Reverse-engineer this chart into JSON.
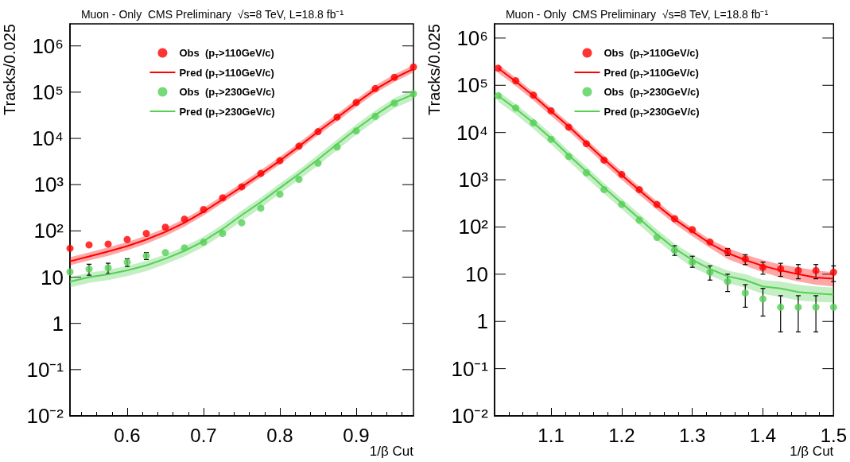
{
  "chart_data": [
    {
      "type": "scatter",
      "title": "Muon - Only  CMS Preliminary  √s=8 TeV, L=18.8 fb⁻¹",
      "xlabel": "1/β Cut",
      "ylabel": "Tracks/0.025",
      "log": "y",
      "grid": false,
      "legend": "top",
      "x": [
        0.525,
        0.55,
        0.575,
        0.6,
        0.625,
        0.65,
        0.675,
        0.7,
        0.725,
        0.75,
        0.775,
        0.8,
        0.825,
        0.85,
        0.875,
        0.9,
        0.925,
        0.95,
        0.975
      ],
      "xlim": [
        0.525,
        0.975
      ],
      "xticks": [
        0.6,
        0.7,
        0.8,
        0.9
      ],
      "ylim": [
        0.01,
        3000000
      ],
      "yticks": [
        {
          "value": 0.01,
          "label": "10⁻²"
        },
        {
          "value": 0.1,
          "label": "10⁻¹"
        },
        {
          "value": 1,
          "label": "1"
        },
        {
          "value": 10,
          "label": "10"
        },
        {
          "value": 100,
          "label": "10²"
        },
        {
          "value": 1000,
          "label": "10³"
        },
        {
          "value": 10000,
          "label": "10⁴"
        },
        {
          "value": 100000,
          "label": "10⁵"
        },
        {
          "value": 1000000,
          "label": "10⁶"
        }
      ],
      "series": [
        {
          "name": "Obs  (p$_{T}$>110GeV/c)",
          "marker": "circle",
          "color": "#ff0000",
          "values": [
            42,
            50,
            52,
            65,
            88,
            120,
            180,
            290,
            520,
            900,
            1750,
            3300,
            6800,
            14000,
            29000,
            60000,
            120000,
            210000,
            350000
          ]
        },
        {
          "name": "Pred (p$_{T}$>110GeV/c)",
          "type": "line",
          "marker": "none",
          "color": "#ff0000",
          "values": [
            22,
            28,
            36,
            47,
            65,
            95,
            150,
            260,
            480,
            900,
            1700,
            3300,
            6700,
            14000,
            28000,
            58000,
            115000,
            200000,
            320000
          ],
          "lower": [
            18,
            23,
            29,
            38,
            53,
            78,
            124,
            215,
            400,
            750,
            1420,
            2750,
            5600,
            11700,
            23300,
            48000,
            96000,
            167000,
            267000
          ],
          "upper": [
            27,
            34,
            44,
            57,
            79,
            115,
            182,
            315,
            580,
            1090,
            2050,
            4000,
            8100,
            16900,
            33800,
            70000,
            139000,
            242000,
            387000
          ]
        },
        {
          "name": "Obs  (p$_{T}$>230GeV/c)",
          "marker": "circle",
          "color": "#55d055",
          "values": [
            13,
            15,
            16,
            21,
            29,
            34,
            43,
            57,
            88,
            150,
            310,
            620,
            1300,
            2900,
            6500,
            14500,
            30000,
            58000,
            92000
          ],
          "errors": [
            null,
            [
              11,
              19
            ],
            [
              12,
              20
            ],
            [
              17,
              25
            ],
            [
              24,
              34
            ],
            null,
            null,
            null,
            null,
            null,
            null,
            null,
            null,
            null,
            null,
            null,
            null,
            null,
            null
          ]
        },
        {
          "name": "Pred (p$_{T}$>230GeV/c)",
          "type": "line",
          "marker": "none",
          "color": "#55d055",
          "values": [
            8,
            10,
            11.5,
            14,
            18,
            25,
            37,
            60,
            110,
            220,
            420,
            850,
            1700,
            3500,
            7500,
            16000,
            32000,
            60000,
            90000
          ],
          "lower": [
            6,
            7.5,
            8.6,
            10.5,
            13.5,
            19,
            28,
            45,
            83,
            165,
            315,
            640,
            1280,
            2600,
            5600,
            12000,
            24000,
            45000,
            68000
          ],
          "upper": [
            10,
            12.5,
            14.4,
            17.5,
            22.5,
            31,
            46,
            75,
            138,
            275,
            525,
            1060,
            2100,
            4400,
            9400,
            20000,
            40000,
            75000,
            112000
          ]
        }
      ]
    },
    {
      "type": "scatter",
      "title": "Muon - Only  CMS Preliminary  √s=8 TeV, L=18.8 fb⁻¹",
      "xlabel": "1/β Cut",
      "ylabel": "Tracks/0.025",
      "log": "y",
      "grid": false,
      "legend": "top",
      "x": [
        1.025,
        1.05,
        1.075,
        1.1,
        1.125,
        1.15,
        1.175,
        1.2,
        1.225,
        1.25,
        1.275,
        1.3,
        1.325,
        1.35,
        1.375,
        1.4,
        1.425,
        1.45,
        1.475,
        1.5
      ],
      "xlim": [
        1.02,
        1.5
      ],
      "xticks": [
        1.1,
        1.2,
        1.3,
        1.4,
        1.5
      ],
      "ylim": [
        0.01,
        2000000
      ],
      "yticks": [
        {
          "value": 0.01,
          "label": "10⁻²"
        },
        {
          "value": 0.1,
          "label": "10⁻¹"
        },
        {
          "value": 1,
          "label": "1"
        },
        {
          "value": 10,
          "label": "10"
        },
        {
          "value": 100,
          "label": "10²"
        },
        {
          "value": 1000,
          "label": "10³"
        },
        {
          "value": 10000,
          "label": "10⁴"
        },
        {
          "value": 100000,
          "label": "10⁵"
        },
        {
          "value": 1000000,
          "label": "10⁶"
        }
      ],
      "series": [
        {
          "name": "Obs  (p$_{T}$>110GeV/c)",
          "marker": "circle",
          "color": "#ff0000",
          "values": [
            230000,
            125000,
            62000,
            29000,
            13000,
            5800,
            2600,
            1300,
            620,
            300,
            150,
            88,
            48,
            30,
            21,
            14,
            13,
            12,
            12,
            11
          ],
          "errors": [
            null,
            null,
            null,
            null,
            null,
            null,
            null,
            null,
            null,
            null,
            null,
            null,
            null,
            [
              25,
              35
            ],
            [
              16,
              26
            ],
            [
              10,
              18
            ],
            [
              9,
              17
            ],
            [
              8,
              16
            ],
            [
              8,
              16
            ],
            [
              7,
              15
            ]
          ]
        },
        {
          "name": "Pred (p$_{T}$>110GeV/c)",
          "type": "line",
          "marker": "none",
          "color": "#ff0000",
          "values": [
            230000,
            120000,
            60000,
            28000,
            13500,
            6000,
            2700,
            1250,
            600,
            290,
            145,
            80,
            45,
            28,
            20,
            15,
            12,
            10,
            8.5,
            8
          ],
          "lower": [
            185000,
            96000,
            48000,
            22400,
            10800,
            4800,
            2160,
            1000,
            480,
            232,
            116,
            64,
            36,
            21,
            15,
            11,
            8.5,
            7,
            6,
            5.5
          ],
          "upper": [
            280000,
            145000,
            72000,
            33600,
            16200,
            7200,
            3240,
            1500,
            720,
            348,
            174,
            96,
            54,
            36,
            26,
            20,
            16,
            14,
            12,
            11
          ]
        },
        {
          "name": "Obs  (p$_{T}$>230GeV/c)",
          "marker": "circle",
          "color": "#55d055",
          "values": [
            60000,
            33000,
            16000,
            7200,
            3100,
            1400,
            620,
            300,
            140,
            60,
            32,
            18,
            11,
            7,
            4,
            3,
            2,
            2,
            2,
            2
          ],
          "errors": [
            null,
            null,
            null,
            null,
            null,
            null,
            null,
            null,
            null,
            null,
            [
              25,
              40
            ],
            [
              14,
              24
            ],
            [
              7.5,
              15
            ],
            [
              4.3,
              10
            ],
            [
              2,
              6
            ],
            [
              1.3,
              5
            ],
            [
              0.6,
              3.5
            ],
            [
              0.6,
              3.5
            ],
            [
              0.6,
              3.5
            ],
            null
          ]
        },
        {
          "name": "Pred (p$_{T}$>230GeV/c)",
          "type": "line",
          "marker": "none",
          "color": "#55d055",
          "values": [
            60000,
            32000,
            16000,
            7500,
            3300,
            1500,
            680,
            320,
            150,
            70,
            35,
            20,
            13,
            9,
            7.5,
            5.5,
            5,
            4.2,
            3.9,
            3.7
          ],
          "lower": [
            45000,
            24000,
            12000,
            5600,
            2500,
            1100,
            510,
            240,
            110,
            52,
            26,
            14,
            9.5,
            6.5,
            5.2,
            3.8,
            3.3,
            2.8,
            2.6,
            2.5
          ],
          "upper": [
            75000,
            40000,
            20000,
            9400,
            4100,
            1900,
            850,
            400,
            190,
            88,
            44,
            26,
            17,
            12,
            10,
            7.5,
            7,
            6,
            5.5,
            5.2
          ]
        }
      ]
    }
  ]
}
